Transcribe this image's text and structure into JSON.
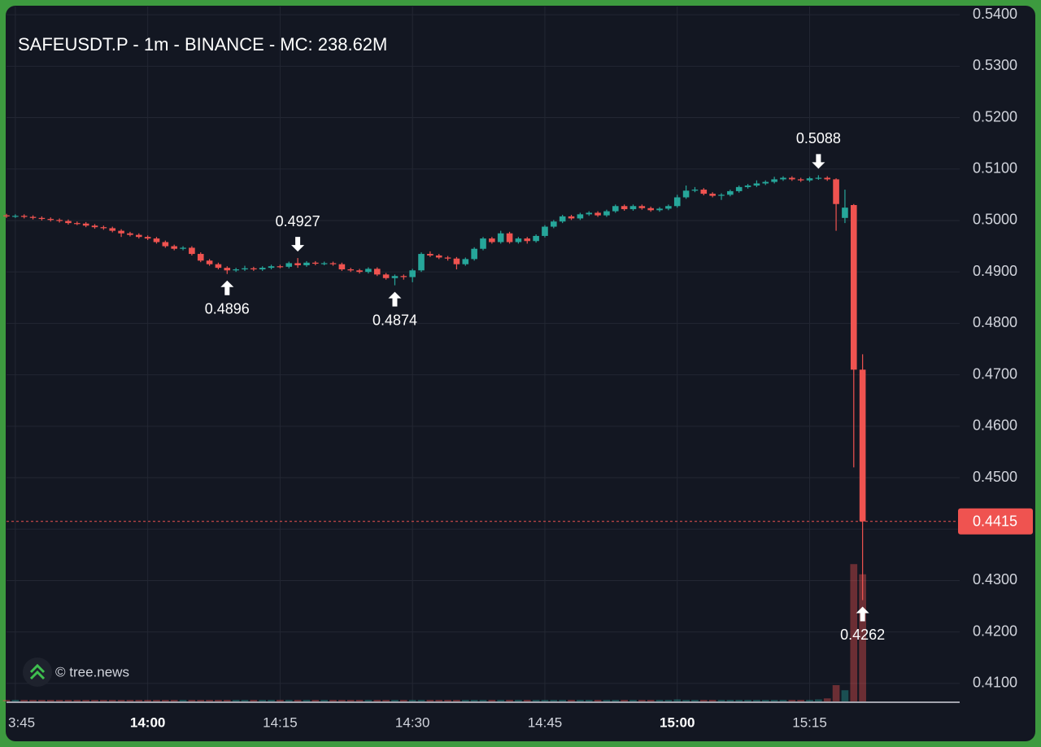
{
  "chart_data": {
    "type": "candlestick",
    "title": "SAFEUSDT.P - 1m - BINANCE - MC: 238.62M",
    "watermark": "© tree.news",
    "up_color": "#26a69a",
    "down_color": "#ef5350",
    "grid": true,
    "x": [
      "13:44",
      "13:45",
      "13:46",
      "13:47",
      "13:48",
      "13:49",
      "13:50",
      "13:51",
      "13:52",
      "13:53",
      "13:54",
      "13:55",
      "13:56",
      "13:57",
      "13:58",
      "13:59",
      "14:00",
      "14:01",
      "14:02",
      "14:03",
      "14:04",
      "14:05",
      "14:06",
      "14:07",
      "14:08",
      "14:09",
      "14:10",
      "14:11",
      "14:12",
      "14:13",
      "14:14",
      "14:15",
      "14:16",
      "14:17",
      "14:18",
      "14:19",
      "14:20",
      "14:21",
      "14:22",
      "14:23",
      "14:24",
      "14:25",
      "14:26",
      "14:27",
      "14:28",
      "14:29",
      "14:30",
      "14:31",
      "14:32",
      "14:33",
      "14:34",
      "14:35",
      "14:36",
      "14:37",
      "14:38",
      "14:39",
      "14:40",
      "14:41",
      "14:42",
      "14:43",
      "14:44",
      "14:45",
      "14:46",
      "14:47",
      "14:48",
      "14:49",
      "14:50",
      "14:51",
      "14:52",
      "14:53",
      "14:54",
      "14:55",
      "14:56",
      "14:57",
      "14:58",
      "14:59",
      "15:00",
      "15:01",
      "15:02",
      "15:03",
      "15:04",
      "15:05",
      "15:06",
      "15:07",
      "15:08",
      "15:09",
      "15:10",
      "15:11",
      "15:12",
      "15:13",
      "15:14",
      "15:15",
      "15:16",
      "15:17",
      "15:18",
      "15:19",
      "15:20",
      "15:21"
    ],
    "open": [
      0.501,
      0.5008,
      0.5009,
      0.5007,
      0.5005,
      0.5003,
      0.5001,
      0.4999,
      0.4995,
      0.4994,
      0.499,
      0.4987,
      0.4985,
      0.498,
      0.4975,
      0.4972,
      0.4968,
      0.4965,
      0.4958,
      0.495,
      0.4945,
      0.4947,
      0.4935,
      0.4922,
      0.4915,
      0.4908,
      0.4903,
      0.4905,
      0.4907,
      0.4905,
      0.4908,
      0.4911,
      0.491,
      0.4917,
      0.4913,
      0.4918,
      0.4916,
      0.4917,
      0.4915,
      0.4905,
      0.4903,
      0.49,
      0.4906,
      0.4895,
      0.4888,
      0.4892,
      0.489,
      0.4903,
      0.4935,
      0.4932,
      0.4928,
      0.4926,
      0.4915,
      0.4925,
      0.4945,
      0.4965,
      0.4958,
      0.4975,
      0.4958,
      0.4965,
      0.496,
      0.497,
      0.4988,
      0.4998,
      0.5008,
      0.5004,
      0.5012,
      0.5015,
      0.501,
      0.5018,
      0.5028,
      0.5022,
      0.5028,
      0.5024,
      0.502,
      0.5023,
      0.5028,
      0.5045,
      0.5058,
      0.506,
      0.5052,
      0.5048,
      0.505,
      0.5057,
      0.5065,
      0.5068,
      0.5072,
      0.5075,
      0.508,
      0.5083,
      0.508,
      0.5078,
      0.5082,
      0.5083,
      0.508,
      0.5005,
      0.503,
      0.471
    ],
    "high": [
      0.5013,
      0.5012,
      0.5012,
      0.501,
      0.5008,
      0.5006,
      0.5004,
      0.5002,
      0.4998,
      0.4997,
      0.4993,
      0.499,
      0.4988,
      0.4983,
      0.4978,
      0.4975,
      0.4971,
      0.4968,
      0.4961,
      0.4953,
      0.495,
      0.495,
      0.4938,
      0.4925,
      0.4918,
      0.4911,
      0.4908,
      0.4912,
      0.491,
      0.4911,
      0.4914,
      0.4914,
      0.492,
      0.4927,
      0.4921,
      0.4921,
      0.492,
      0.492,
      0.4918,
      0.4908,
      0.4906,
      0.4909,
      0.4909,
      0.4898,
      0.4895,
      0.4895,
      0.4906,
      0.4938,
      0.494,
      0.4935,
      0.4931,
      0.4929,
      0.4928,
      0.4948,
      0.4968,
      0.4968,
      0.498,
      0.4978,
      0.4968,
      0.4968,
      0.4973,
      0.4991,
      0.5001,
      0.5011,
      0.5011,
      0.5015,
      0.5018,
      0.5018,
      0.5021,
      0.5031,
      0.5031,
      0.5031,
      0.5031,
      0.5027,
      0.5026,
      0.5031,
      0.505,
      0.5068,
      0.5065,
      0.5063,
      0.5055,
      0.5053,
      0.506,
      0.5068,
      0.5071,
      0.5078,
      0.5078,
      0.5085,
      0.5086,
      0.5086,
      0.5083,
      0.5085,
      0.5088,
      0.5086,
      0.5082,
      0.506,
      0.5032,
      0.474
    ],
    "low": [
      0.5005,
      0.5005,
      0.5004,
      0.5002,
      0.5,
      0.4998,
      0.4996,
      0.4992,
      0.4991,
      0.4987,
      0.4984,
      0.4982,
      0.4977,
      0.4968,
      0.4969,
      0.4965,
      0.4962,
      0.4955,
      0.4947,
      0.4942,
      0.4942,
      0.4932,
      0.4919,
      0.4912,
      0.4905,
      0.4896,
      0.49,
      0.4902,
      0.4902,
      0.4902,
      0.4905,
      0.4907,
      0.4907,
      0.4908,
      0.491,
      0.4913,
      0.4913,
      0.4912,
      0.4902,
      0.49,
      0.4897,
      0.4897,
      0.4892,
      0.4885,
      0.4874,
      0.4885,
      0.488,
      0.49,
      0.4929,
      0.4925,
      0.4922,
      0.4905,
      0.4912,
      0.4922,
      0.4942,
      0.4955,
      0.4955,
      0.4955,
      0.4955,
      0.4955,
      0.4957,
      0.4967,
      0.4985,
      0.4995,
      0.5001,
      0.5001,
      0.5009,
      0.5007,
      0.5007,
      0.5015,
      0.5019,
      0.5019,
      0.5021,
      0.5017,
      0.5017,
      0.502,
      0.5025,
      0.5042,
      0.5055,
      0.5049,
      0.5045,
      0.504,
      0.5047,
      0.5054,
      0.5062,
      0.5065,
      0.5069,
      0.5072,
      0.5077,
      0.5077,
      0.5075,
      0.5075,
      0.5079,
      0.5077,
      0.498,
      0.4995,
      0.452,
      0.4262
    ],
    "close": [
      0.5008,
      0.5009,
      0.5007,
      0.5005,
      0.5003,
      0.5001,
      0.4999,
      0.4995,
      0.4994,
      0.499,
      0.4987,
      0.4985,
      0.498,
      0.4975,
      0.4972,
      0.4968,
      0.4965,
      0.4958,
      0.495,
      0.4945,
      0.4947,
      0.4935,
      0.4922,
      0.4915,
      0.4908,
      0.4903,
      0.4905,
      0.4907,
      0.4905,
      0.4908,
      0.4911,
      0.491,
      0.4917,
      0.4913,
      0.4918,
      0.4916,
      0.4917,
      0.4915,
      0.4905,
      0.4903,
      0.49,
      0.4906,
      0.4895,
      0.4888,
      0.4892,
      0.489,
      0.4903,
      0.4935,
      0.4932,
      0.4928,
      0.4926,
      0.4915,
      0.4925,
      0.4945,
      0.4965,
      0.4958,
      0.4975,
      0.4958,
      0.4965,
      0.496,
      0.497,
      0.4988,
      0.4998,
      0.5008,
      0.5004,
      0.5012,
      0.5015,
      0.501,
      0.5018,
      0.5028,
      0.5022,
      0.5028,
      0.5024,
      0.502,
      0.5023,
      0.5028,
      0.5045,
      0.5058,
      0.506,
      0.5052,
      0.5048,
      0.505,
      0.5057,
      0.5065,
      0.5068,
      0.5072,
      0.5075,
      0.508,
      0.5083,
      0.508,
      0.5078,
      0.5082,
      0.5083,
      0.508,
      0.5032,
      0.5025,
      0.471,
      0.4415
    ],
    "volume": [
      0.3,
      0.3,
      0.3,
      0.3,
      0.3,
      0.3,
      0.3,
      0.3,
      0.3,
      0.3,
      0.3,
      0.3,
      0.3,
      0.3,
      0.3,
      0.3,
      0.3,
      0.3,
      0.3,
      0.3,
      0.3,
      0.3,
      0.3,
      0.3,
      0.3,
      0.3,
      0.3,
      0.3,
      0.3,
      0.3,
      0.3,
      0.3,
      0.3,
      0.3,
      0.3,
      0.3,
      0.3,
      0.3,
      0.3,
      0.3,
      0.3,
      0.3,
      0.3,
      0.3,
      0.3,
      0.3,
      0.3,
      0.3,
      0.3,
      0.3,
      0.3,
      0.3,
      0.3,
      0.3,
      0.3,
      0.3,
      0.3,
      0.3,
      0.3,
      0.3,
      0.3,
      0.3,
      0.3,
      0.3,
      0.3,
      0.3,
      0.3,
      0.3,
      0.3,
      0.3,
      0.3,
      0.3,
      0.3,
      0.3,
      0.3,
      0.3,
      0.4,
      0.3,
      0.3,
      0.3,
      0.3,
      0.3,
      0.3,
      0.3,
      0.3,
      0.3,
      0.3,
      0.3,
      0.3,
      0.3,
      0.3,
      0.3,
      0.4,
      0.6,
      3.2,
      2.2,
      27,
      25
    ],
    "volume_ylim": [
      0,
      40
    ],
    "xlim": [
      "13:44",
      "15:32"
    ],
    "xticks": [
      {
        "value": "13:45",
        "label": "3:45"
      },
      "14:00",
      "14:15",
      "14:30",
      "14:45",
      "15:00",
      "15:15"
    ],
    "bold_xticks": [
      "14:00",
      "15:00"
    ],
    "ylim": [
      0.4065,
      0.5416
    ],
    "yticks": [
      {
        "value": 0.41,
        "label": "0.4100"
      },
      {
        "value": 0.42,
        "label": "0.4200"
      },
      {
        "value": 0.43,
        "label": "0.4300"
      },
      {
        "value": 0.44,
        "label": "0.4400"
      },
      {
        "value": 0.45,
        "label": "0.4500"
      },
      {
        "value": 0.46,
        "label": "0.4600"
      },
      {
        "value": 0.47,
        "label": "0.4700"
      },
      {
        "value": 0.48,
        "label": "0.4800"
      },
      {
        "value": 0.49,
        "label": "0.4900"
      },
      {
        "value": 0.5,
        "label": "0.5000"
      },
      {
        "value": 0.51,
        "label": "0.5100"
      },
      {
        "value": 0.52,
        "label": "0.5200"
      },
      {
        "value": 0.53,
        "label": "0.5300"
      },
      {
        "value": 0.54,
        "label": "0.5400"
      }
    ],
    "last_price": 0.4415,
    "annotations": [
      {
        "x": "14:09",
        "value": 0.4896,
        "direction": "up"
      },
      {
        "x": "14:17",
        "value": 0.4927,
        "direction": "down"
      },
      {
        "x": "14:28",
        "value": 0.4874,
        "direction": "up"
      },
      {
        "x": "15:16",
        "value": 0.5088,
        "direction": "down"
      },
      {
        "x": "15:21",
        "value": 0.4262,
        "direction": "up"
      }
    ]
  }
}
